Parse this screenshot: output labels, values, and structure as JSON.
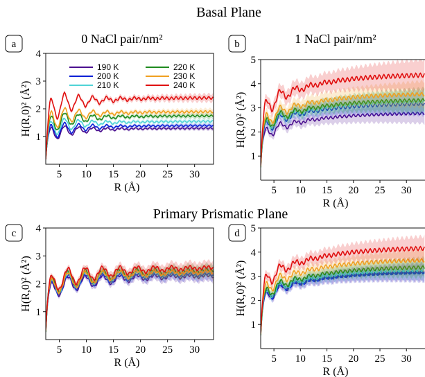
{
  "figure": {
    "section_titles": [
      "Basal Plane",
      "Primary Prismatic Plane"
    ]
  },
  "colors": {
    "190 K": "#4b0f8f",
    "200 K": "#0a1fd6",
    "210 K": "#4fd3d6",
    "220 K": "#1e8a1e",
    "230 K": "#f0a020",
    "240 K": "#e01010"
  },
  "chart_data": [
    {
      "id": "a",
      "type": "line",
      "title": "0 NaCl pair/nm²",
      "xlabel": "R (Å)",
      "ylabel": "H(R,0)² (Å²)",
      "xlim": [
        2.5,
        33.5
      ],
      "ylim": [
        0,
        4
      ],
      "xticks": [
        5,
        10,
        15,
        20,
        25,
        30
      ],
      "yticks": [
        1,
        2,
        3,
        4
      ],
      "legend": "upper-center",
      "series": [
        {
          "name": "190 K",
          "plateau": 1.3
        },
        {
          "name": "200 K",
          "plateau": 1.4
        },
        {
          "name": "210 K",
          "plateau": 1.55
        },
        {
          "name": "220 K",
          "plateau": 1.75
        },
        {
          "name": "230 K",
          "plateau": 1.9
        },
        {
          "name": "240 K",
          "plateau": 2.4
        }
      ]
    },
    {
      "id": "b",
      "type": "line",
      "title": "1 NaCl pair/nm²",
      "xlabel": "R (Å)",
      "ylabel": "H(R,0)² (Å²)",
      "xlim": [
        2.5,
        33.5
      ],
      "ylim": [
        0,
        5
      ],
      "xticks": [
        5,
        10,
        15,
        20,
        25,
        30
      ],
      "yticks": [
        1,
        2,
        3,
        4,
        5
      ],
      "series": [
        {
          "name": "190 K",
          "plateau": 2.8
        },
        {
          "name": "200 K",
          "plateau": 3.2
        },
        {
          "name": "210 K",
          "plateau": 3.3
        },
        {
          "name": "220 K",
          "plateau": 3.35
        },
        {
          "name": "230 K",
          "plateau": 3.6
        },
        {
          "name": "240 K",
          "plateau": 4.4
        }
      ]
    },
    {
      "id": "c",
      "type": "line",
      "title": "",
      "xlabel": "R (Å)",
      "ylabel": "H(R,0)² (Å²)",
      "xlim": [
        2.5,
        33.5
      ],
      "ylim": [
        0,
        4
      ],
      "xticks": [
        5,
        10,
        15,
        20,
        25,
        30
      ],
      "yticks": [
        1,
        2,
        3,
        4
      ],
      "series": [
        {
          "name": "190 K",
          "plateau": 2.3
        },
        {
          "name": "200 K",
          "plateau": 2.35
        },
        {
          "name": "210 K",
          "plateau": 2.45
        },
        {
          "name": "220 K",
          "plateau": 2.5
        },
        {
          "name": "230 K",
          "plateau": 2.45
        },
        {
          "name": "240 K",
          "plateau": 2.6
        }
      ]
    },
    {
      "id": "d",
      "type": "line",
      "title": "",
      "xlabel": "R (Å)",
      "ylabel": "H(R,0)² (Å²)",
      "xlim": [
        2.5,
        33.5
      ],
      "ylim": [
        0,
        5
      ],
      "xticks": [
        5,
        10,
        15,
        20,
        25,
        30
      ],
      "yticks": [
        1,
        2,
        3,
        4,
        5
      ],
      "series": [
        {
          "name": "190 K",
          "plateau": 3.2
        },
        {
          "name": "200 K",
          "plateau": 3.2
        },
        {
          "name": "210 K",
          "plateau": 3.3
        },
        {
          "name": "220 K",
          "plateau": 3.4
        },
        {
          "name": "230 K",
          "plateau": 3.7
        },
        {
          "name": "240 K",
          "plateau": 4.2
        }
      ]
    }
  ]
}
